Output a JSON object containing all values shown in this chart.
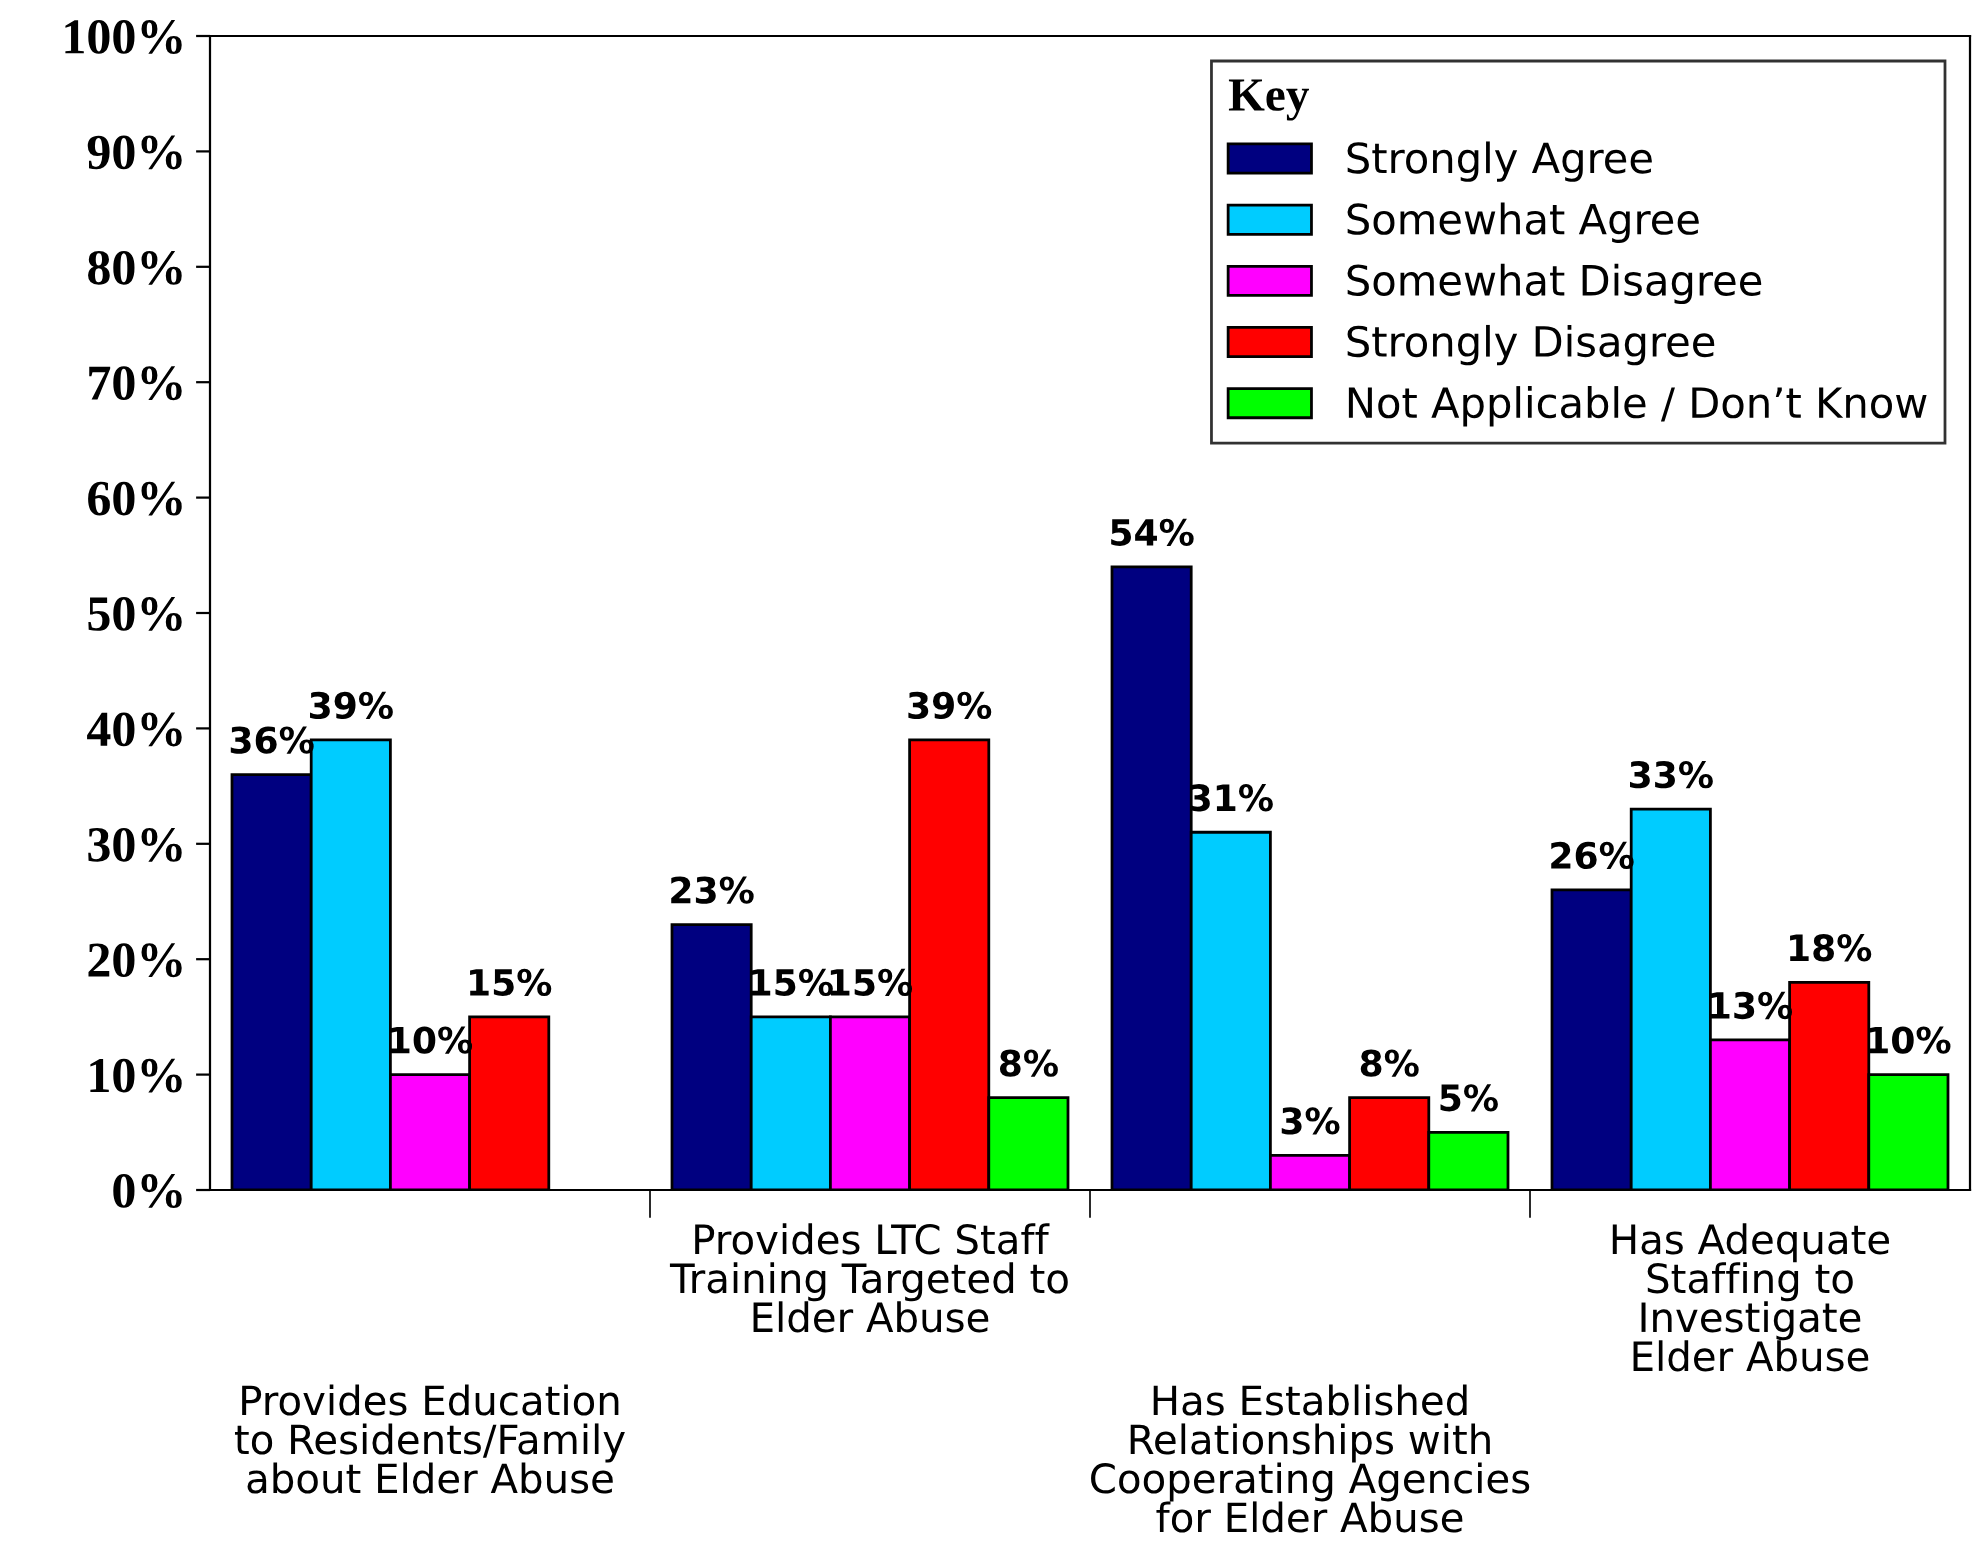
{
  "chart_data": {
    "type": "bar",
    "categories": [
      "Provides Education\nto Residents/Family\nabout Elder Abuse",
      "Provides LTC Staff\nTraining Targeted to\nElder Abuse",
      "Has Established\nRelationships with\nCooperating Agencies\nfor Elder Abuse",
      "Has Adequate\nStaffing to\nInvestigate\nElder Abuse"
    ],
    "series": [
      {
        "name": "Strongly Agree",
        "color": "#000080",
        "values": [
          36,
          23,
          54,
          26
        ],
        "value_labels": [
          "36%",
          "23%",
          "54%",
          "26%"
        ]
      },
      {
        "name": "Somewhat Agree",
        "color": "#00ccff",
        "values": [
          39,
          15,
          31,
          33
        ],
        "value_labels": [
          "39%",
          "15%",
          "31%",
          "33%"
        ]
      },
      {
        "name": "Somewhat Disagree",
        "color": "#ff00ff",
        "values": [
          10,
          15,
          3,
          13
        ],
        "value_labels": [
          "10%",
          "15%",
          "3%",
          "13%"
        ]
      },
      {
        "name": "Strongly Disagree",
        "color": "#ff0000",
        "values": [
          15,
          39,
          8,
          18
        ],
        "value_labels": [
          "15%",
          "39%",
          "8%",
          "18%"
        ]
      },
      {
        "name": "Not Applicable / Don’t Know",
        "color": "#00ff00",
        "values": [
          null,
          8,
          5,
          10
        ],
        "value_labels": [
          null,
          "8%",
          "5%",
          "10%"
        ]
      }
    ],
    "legend_title": "Key",
    "legend": "top right",
    "ylim": [
      0,
      100
    ],
    "yticks": [
      {
        "value": 0,
        "label": "0%"
      },
      {
        "value": 10,
        "label": "10%"
      },
      {
        "value": 20,
        "label": "20%"
      },
      {
        "value": 30,
        "label": "30%"
      },
      {
        "value": 40,
        "label": "40%"
      },
      {
        "value": 50,
        "label": "50%"
      },
      {
        "value": 60,
        "label": "60%"
      },
      {
        "value": 70,
        "label": "70%"
      },
      {
        "value": 80,
        "label": "80%"
      },
      {
        "value": 90,
        "label": "90%"
      },
      {
        "value": 100,
        "label": "100%"
      }
    ],
    "grid": false
  }
}
